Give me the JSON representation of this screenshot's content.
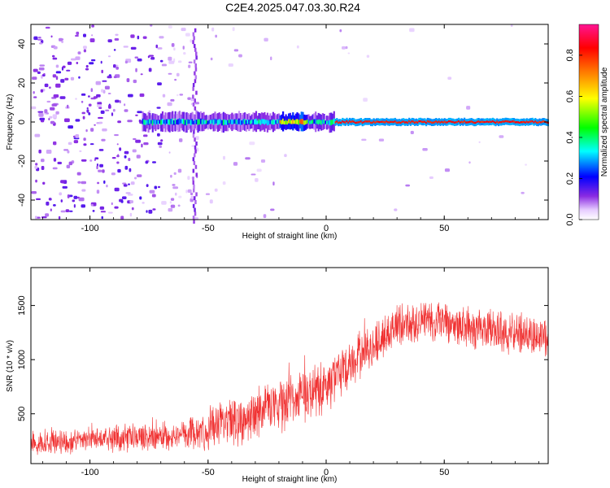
{
  "title": "C2E4.2025.047.03.30.R24",
  "chart_data": [
    {
      "type": "heatmap",
      "title": "C2E4.2025.047.03.30.R24",
      "xlabel": "Height of straight line (km)",
      "ylabel": "Frequency (Hz)",
      "xlim": [
        -125,
        94
      ],
      "ylim": [
        -50,
        50
      ],
      "x_ticks": [
        -100,
        -50,
        0,
        50
      ],
      "y_ticks": [
        -40,
        -20,
        0,
        20,
        40
      ],
      "colorbar": {
        "label": "Normalized spectral amplitude",
        "range": [
          0,
          0.95
        ],
        "ticks": [
          "0.0",
          "0.2",
          "0.4",
          "0.6",
          "0.8"
        ],
        "placement": "right"
      },
      "features": {
        "noise_region_x": [
          -125,
          -55
        ],
        "signal_start_x": -78,
        "strong_line_start_x": 3,
        "line_frequency": 0
      },
      "colors": [
        "#ffffff",
        "#8a2be2",
        "#0000ff",
        "#00ffff",
        "#00ff00",
        "#ffff00",
        "#ff8000",
        "#ff0000",
        "#ff1493"
      ]
    },
    {
      "type": "line",
      "xlabel": "Height of straight line (km)",
      "ylabel": "SNR (10 * v/v)",
      "xlim": [
        -125,
        94
      ],
      "ylim": [
        40,
        1850
      ],
      "x_ticks": [
        -100,
        -50,
        0,
        50
      ],
      "y_ticks": [
        500,
        1000,
        1500
      ],
      "color": "#f03232",
      "envelope": {
        "x": [
          -125,
          -100,
          -80,
          -60,
          -50,
          -40,
          -30,
          -20,
          -10,
          0,
          10,
          20,
          30,
          40,
          50,
          60,
          70,
          80,
          94
        ],
        "mean": [
          230,
          260,
          280,
          300,
          360,
          420,
          520,
          590,
          650,
          750,
          960,
          1110,
          1320,
          1370,
          1340,
          1300,
          1280,
          1240,
          1200
        ],
        "spread": [
          120,
          120,
          130,
          150,
          200,
          240,
          260,
          260,
          260,
          260,
          230,
          220,
          220,
          220,
          210,
          200,
          200,
          200,
          200
        ]
      }
    }
  ]
}
